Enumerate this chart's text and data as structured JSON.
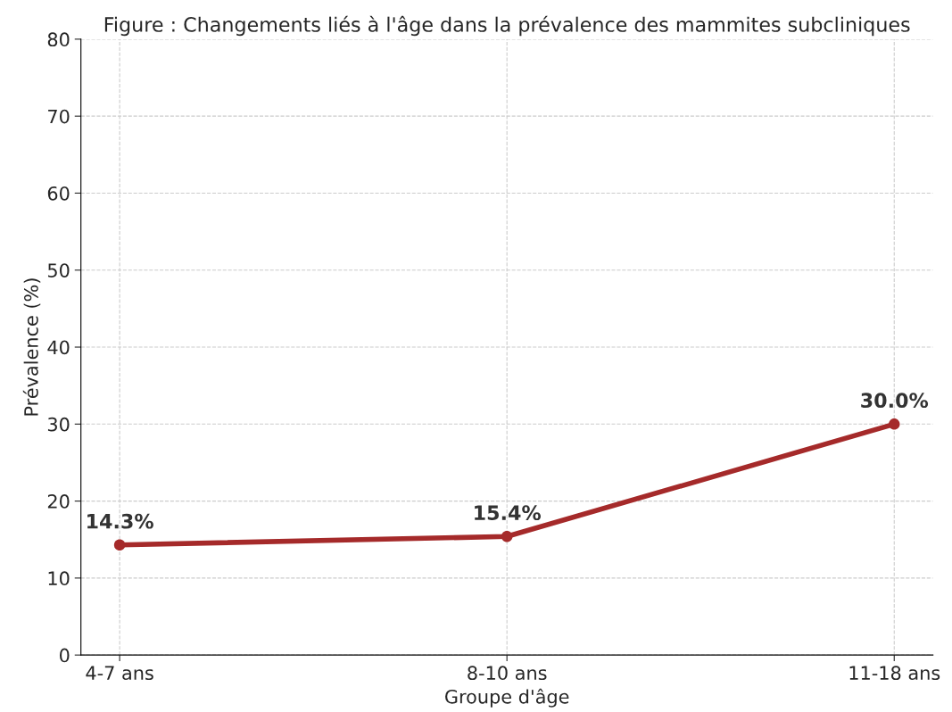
{
  "chart_data": {
    "type": "line",
    "title": "Figure : Changements liés à l'âge dans la prévalence des mammites subcliniques",
    "xlabel": "Groupe d'âge",
    "ylabel": "Prévalence (%)",
    "categories": [
      "4-7 ans",
      "8-10 ans",
      "11-18 ans"
    ],
    "series": [
      {
        "color": "#a52a2a",
        "values": [
          14.3,
          15.4,
          30.0
        ]
      }
    ],
    "value_labels": [
      "14.3%",
      "15.4%",
      "30.0%"
    ],
    "ylim": [
      0,
      80
    ],
    "yticks": [
      0,
      10,
      20,
      30,
      40,
      50,
      60,
      70,
      80
    ],
    "grid": true,
    "marker": "circle",
    "line_style": "solid"
  }
}
